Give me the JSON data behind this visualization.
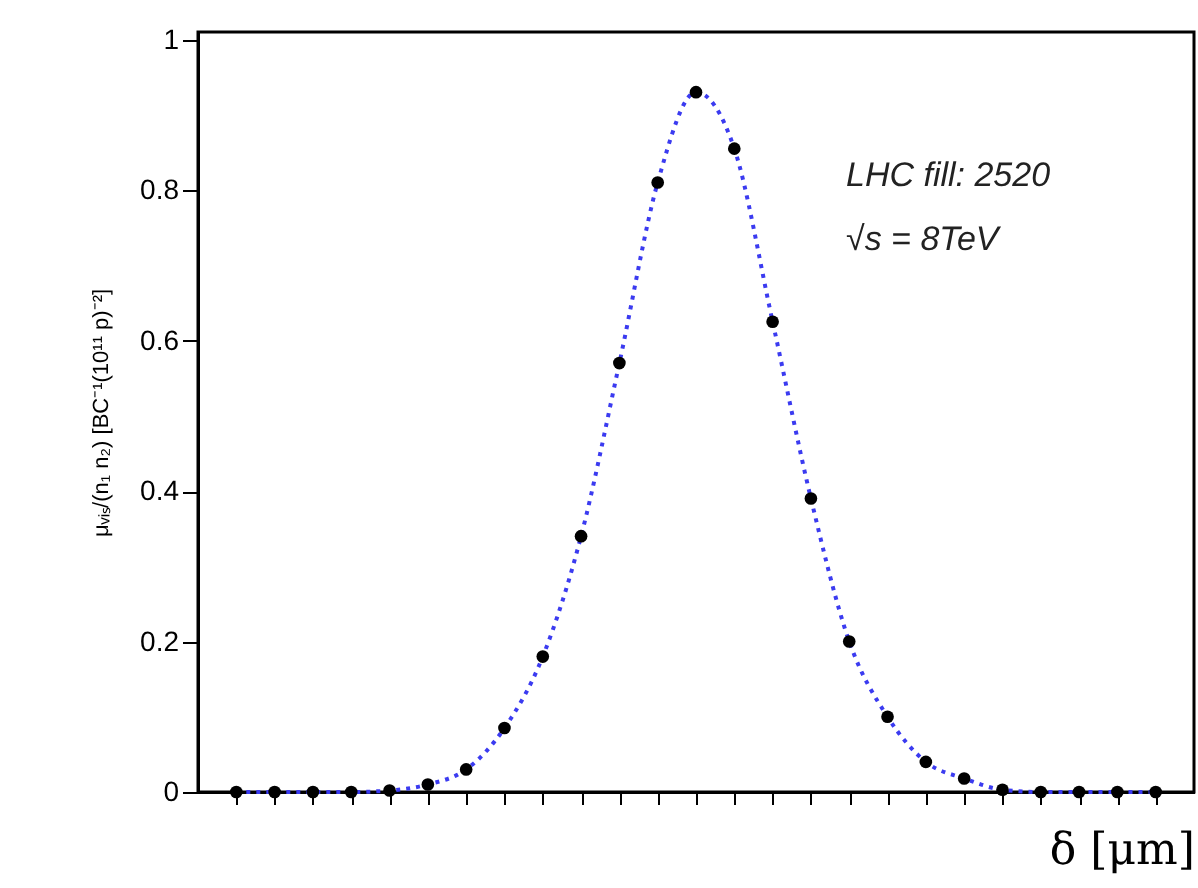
{
  "chart_data": {
    "type": "scatter",
    "xlabel": "δ [μm]",
    "ylabel": "μᵥᵢₛ/(n₁ n₂) [BC⁻¹(10¹¹ p)⁻²]",
    "categories": [
      null,
      null,
      null,
      null,
      null,
      null,
      null,
      null,
      null,
      null,
      null,
      null,
      null,
      null,
      null,
      null,
      null,
      null,
      null,
      null,
      null,
      null,
      null,
      null,
      null
    ],
    "series": [
      {
        "type": "line",
        "color": "#3b3bf0",
        "line_style": "dotted",
        "values": [
          0,
          0,
          0,
          0,
          0.002,
          0.01,
          0.03,
          0.085,
          0.18,
          0.34,
          0.57,
          0.81,
          0.93,
          0.855,
          0.625,
          0.39,
          0.2,
          0.1,
          0.04,
          0.018,
          0.003,
          0,
          0,
          0,
          0
        ]
      },
      {
        "color": "#000000",
        "marker": "circle",
        "values": [
          0,
          0,
          0,
          0,
          0.002,
          0.01,
          0.03,
          0.085,
          0.18,
          0.34,
          0.57,
          0.81,
          0.93,
          0.855,
          0.625,
          0.39,
          0.2,
          0.1,
          0.04,
          0.018,
          0.003,
          0,
          0,
          0,
          0
        ]
      }
    ],
    "ylim": [
      0,
      1.01
    ],
    "yticks": [
      0,
      0.2,
      0.4,
      0.6,
      0.8,
      1
    ],
    "tick_labels": "y",
    "grid": false,
    "annotations": [
      "LHC fill: 2520",
      "√s = 8TeV"
    ]
  }
}
